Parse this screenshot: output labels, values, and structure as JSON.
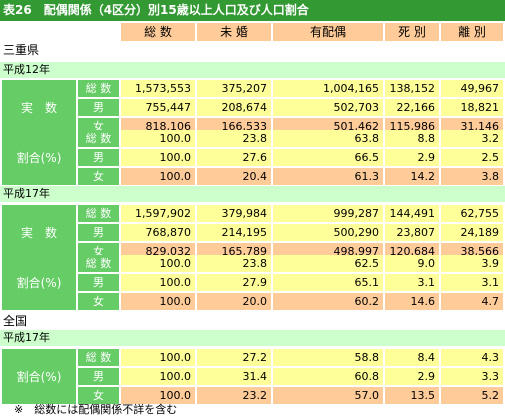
{
  "title": "表26　配偶関係（4区分）別15歳以上人口及び人口割合",
  "headers": [
    "総 数",
    "未 婚",
    "有配偶",
    "死 別",
    "離 別"
  ],
  "colors": {
    "title_bg": "#339933",
    "year_bg": "#ccffcc",
    "label_bg": "#66cc66",
    "row_yellow": "#ffff99",
    "row_orange": "#ffcc99",
    "header_bg": "#ffcc99"
  },
  "sections": [
    {
      "region": "三重県",
      "year": "平成12年",
      "groups": [
        {
          "label": "実　数",
          "rows": [
            {
              "sub": "総 数",
              "values": [
                "1,573,553",
                "375,207",
                "1,004,165",
                "138,152",
                "49,967"
              ]
            },
            {
              "sub": "男",
              "values": [
                "755,447",
                "208,674",
                "502,703",
                "22,166",
                "18,821"
              ]
            },
            {
              "sub": "女",
              "values": [
                "818,106",
                "166,533",
                "501,462",
                "115,986",
                "31,146"
              ]
            }
          ]
        },
        {
          "label": "割合(%)",
          "rows": [
            {
              "sub": "総 数",
              "values": [
                "100.0",
                "23.8",
                "63.8",
                "8.8",
                "3.2"
              ]
            },
            {
              "sub": "男",
              "values": [
                "100.0",
                "27.6",
                "66.5",
                "2.9",
                "2.5"
              ]
            },
            {
              "sub": "女",
              "values": [
                "100.0",
                "20.4",
                "61.3",
                "14.2",
                "3.8"
              ]
            }
          ]
        }
      ]
    },
    {
      "region": "",
      "year": "平成17年",
      "groups": [
        {
          "label": "実　数",
          "rows": [
            {
              "sub": "総 数",
              "values": [
                "1,597,902",
                "379,984",
                "999,287",
                "144,491",
                "62,755"
              ]
            },
            {
              "sub": "男",
              "values": [
                "768,870",
                "214,195",
                "500,290",
                "23,807",
                "24,189"
              ]
            },
            {
              "sub": "女",
              "values": [
                "829,032",
                "165,789",
                "498,997",
                "120,684",
                "38,566"
              ]
            }
          ]
        },
        {
          "label": "割合(%)",
          "rows": [
            {
              "sub": "総 数",
              "values": [
                "100.0",
                "23.8",
                "62.5",
                "9.0",
                "3.9"
              ]
            },
            {
              "sub": "男",
              "values": [
                "100.0",
                "27.9",
                "65.1",
                "3.1",
                "3.1"
              ]
            },
            {
              "sub": "女",
              "values": [
                "100.0",
                "20.0",
                "60.2",
                "14.6",
                "4.7"
              ]
            }
          ]
        }
      ]
    },
    {
      "region": "全国",
      "year": "平成17年",
      "groups": [
        {
          "label": "割合(%)",
          "rows": [
            {
              "sub": "総 数",
              "values": [
                "100.0",
                "27.2",
                "58.8",
                "8.4",
                "4.3"
              ]
            },
            {
              "sub": "男",
              "values": [
                "100.0",
                "31.4",
                "60.8",
                "2.9",
                "3.3"
              ]
            },
            {
              "sub": "女",
              "values": [
                "100.0",
                "23.2",
                "57.0",
                "13.5",
                "5.2"
              ]
            }
          ]
        }
      ]
    }
  ],
  "note": "※　総数には配偶関係不詳を含む"
}
